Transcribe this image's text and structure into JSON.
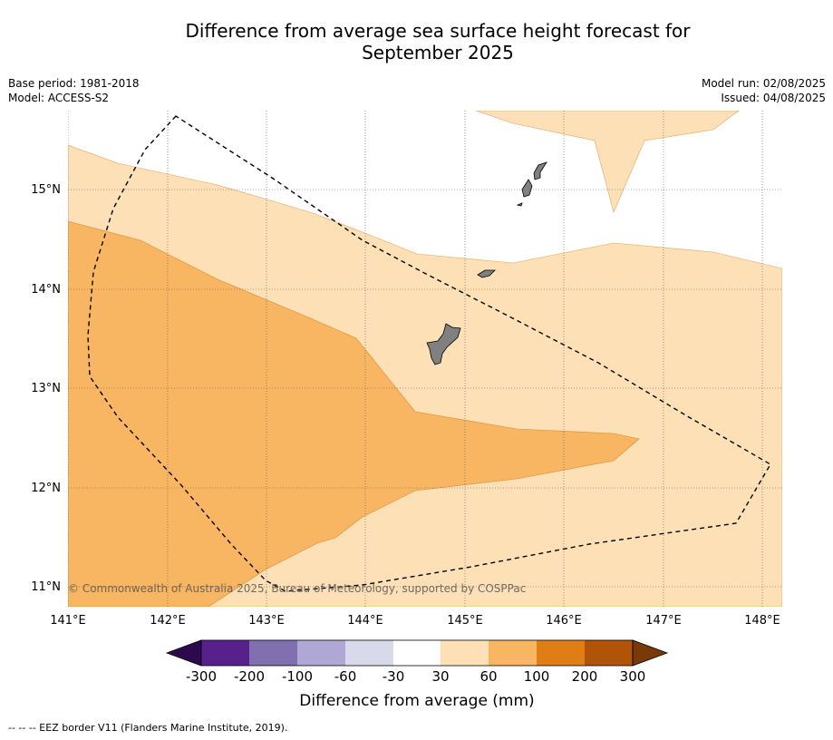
{
  "title_line1": "Difference from average sea surface height forecast for",
  "title_line2": "September 2025",
  "base_period": "Base period: 1981-2018",
  "model": "Model: ACCESS-S2",
  "model_run": "Model run: 02/08/2025",
  "issued": "Issued: 04/08/2025",
  "copyright": "© Commonwealth of Australia 2025, Bureau of Meteorology, supported by COSPPac",
  "lon_labels": [
    "141°E",
    "142°E",
    "143°E",
    "144°E",
    "145°E",
    "146°E",
    "147°E",
    "148°E"
  ],
  "lat_labels": [
    "15°N",
    "14°N",
    "13°N",
    "12°N",
    "11°N"
  ],
  "colorbar": {
    "label": "Difference from average (mm)",
    "ticks": [
      "-300",
      "-200",
      "-100",
      "-60",
      "-30",
      "30",
      "60",
      "100",
      "200",
      "300"
    ],
    "colors": [
      "#2d0a4e",
      "#58208a",
      "#8070b0",
      "#b0a8d4",
      "#d9d9ec",
      "#ffffff",
      "#fde0b5",
      "#f9b662",
      "#df7e15",
      "#b05408",
      "#7a3a08"
    ]
  },
  "legend_note": "--  --  -- EEZ border V11 (Flanders Marine Institute, 2019)."
}
